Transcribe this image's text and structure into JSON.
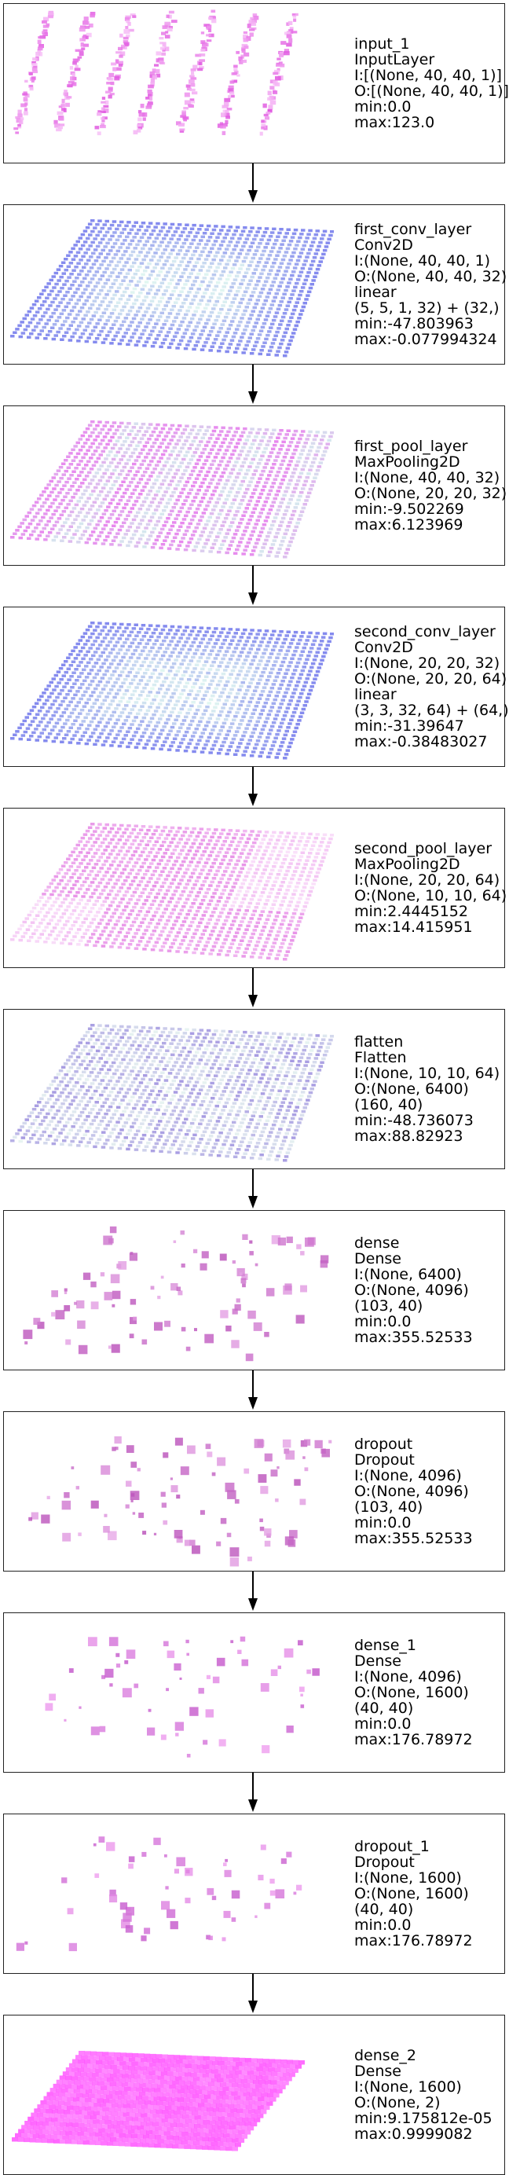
{
  "layers": [
    {
      "name": "input_1",
      "type": "InputLayer",
      "input_shape": "I:[(None, 40, 40, 1)]",
      "output_shape": "O:[(None, 40, 40, 1)]",
      "min": "min:0.0",
      "max": "max:123.0",
      "viz": "stripes",
      "palette": [
        "#e055e0",
        "#f8c4f8"
      ]
    },
    {
      "name": "first_conv_layer",
      "type": "Conv2D",
      "input_shape": "I:(None, 40, 40, 1)",
      "output_shape": "O:(None, 40, 40, 32)",
      "extra": [
        "linear",
        "(5, 5, 1, 32) + (32,)"
      ],
      "min": "min:-47.803963",
      "max": "max:-0.077994324",
      "viz": "grid-cool",
      "palette": [
        "#5c64e8",
        "#d8f4ec"
      ]
    },
    {
      "name": "first_pool_layer",
      "type": "MaxPooling2D",
      "input_shape": "I:(None, 40, 40, 32)",
      "output_shape": "O:(None, 20, 20, 32)",
      "min": "min:-9.502269",
      "max": "max:6.123969",
      "viz": "grid-magenta",
      "palette": [
        "#e060e8",
        "#c8e0e8"
      ]
    },
    {
      "name": "second_conv_layer",
      "type": "Conv2D",
      "input_shape": "I:(None, 20, 20, 32)",
      "output_shape": "O:(None, 20, 20, 64)",
      "extra": [
        "linear",
        "(3, 3, 32, 64) + (64,)"
      ],
      "min": "min:-31.39647",
      "max": "max:-0.38483027",
      "viz": "grid-cool",
      "palette": [
        "#5c64e8",
        "#d8f4ec"
      ]
    },
    {
      "name": "second_pool_layer",
      "type": "MaxPooling2D",
      "input_shape": "I:(None, 20, 20, 64)",
      "output_shape": "O:(None, 10, 10, 64)",
      "min": "min:2.4445152",
      "max": "max:14.415951",
      "viz": "grid-pink",
      "palette": [
        "#e070e0",
        "#f8d8f8"
      ]
    },
    {
      "name": "flatten",
      "type": "Flatten",
      "input_shape": "I:(None, 10, 10, 64)",
      "output_shape": "O:(None, 6400)",
      "extra": [
        "(160, 40)"
      ],
      "min": "min:-48.736073",
      "max": "max:88.82923",
      "viz": "grid-mixed",
      "palette": [
        "#8a7ad8",
        "#e0f0ec"
      ]
    },
    {
      "name": "dense",
      "type": "Dense",
      "input_shape": "I:(None, 6400)",
      "output_shape": "O:(None, 4096)",
      "extra": [
        "(103, 40)"
      ],
      "min": "min:0.0",
      "max": "max:355.52533",
      "viz": "sparse",
      "palette": [
        "#b84cb8",
        "#e8a8e8"
      ]
    },
    {
      "name": "dropout",
      "type": "Dropout",
      "input_shape": "I:(None, 4096)",
      "output_shape": "O:(None, 4096)",
      "extra": [
        "(103, 40)"
      ],
      "min": "min:0.0",
      "max": "max:355.52533",
      "viz": "sparse",
      "palette": [
        "#b84cb8",
        "#e8a8e8"
      ]
    },
    {
      "name": "dense_1",
      "type": "Dense",
      "input_shape": "I:(None, 4096)",
      "output_shape": "O:(None, 1600)",
      "extra": [
        "(40, 40)"
      ],
      "min": "min:0.0",
      "max": "max:176.78972",
      "viz": "sparse",
      "palette": [
        "#c050c8",
        "#f0a0f0"
      ]
    },
    {
      "name": "dropout_1",
      "type": "Dropout",
      "input_shape": "I:(None, 1600)",
      "output_shape": "O:(None, 1600)",
      "extra": [
        "(40, 40)"
      ],
      "min": "min:0.0",
      "max": "max:176.78972",
      "viz": "sparse",
      "palette": [
        "#c050c8",
        "#f0a0f0"
      ]
    },
    {
      "name": "dense_2",
      "type": "Dense",
      "input_shape": "I:(None, 1600)",
      "output_shape": "O:(None, 2)",
      "min": "min:9.175812e-05",
      "max": "max:0.9999082",
      "viz": "solid",
      "palette": [
        "#ff40ff",
        "#ff90ff"
      ]
    }
  ]
}
